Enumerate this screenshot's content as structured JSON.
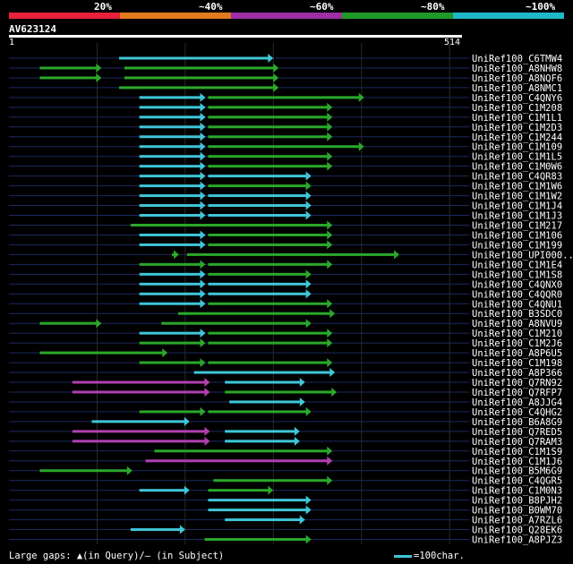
{
  "legend": [
    {
      "label": "20%",
      "color": "#e8203a"
    },
    {
      "label": "~40%",
      "color": "#e27a1e"
    },
    {
      "label": "~60%",
      "color": "#9b2fa3"
    },
    {
      "label": "~80%",
      "color": "#1f9a28"
    },
    {
      "label": "~100%",
      "color": "#1fb8c8"
    }
  ],
  "query": {
    "name": "AV623124",
    "start": "1",
    "end": "514",
    "length": 514
  },
  "colors": {
    "cyan": "#3fc6d8",
    "green": "#2aa82a",
    "magenta": "#b040b0",
    "guide": "#1c2a60"
  },
  "hits": [
    {
      "name": "UniRef100_C6TMW4",
      "segs": [
        [
          125,
          300,
          "c"
        ]
      ]
    },
    {
      "name": "UniRef100_A8NHW8",
      "segs": [
        [
          35,
          105,
          "g"
        ],
        [
          131,
          306,
          "g"
        ]
      ]
    },
    {
      "name": "UniRef100_A8NQF6",
      "segs": [
        [
          35,
          105,
          "g"
        ],
        [
          131,
          306,
          "g"
        ]
      ]
    },
    {
      "name": "UniRef100_A8NMC1",
      "segs": [
        [
          125,
          306,
          "g"
        ]
      ]
    },
    {
      "name": "UniRef100_C4QNY6",
      "segs": [
        [
          148,
          223,
          "c"
        ],
        [
          226,
          403,
          "g"
        ]
      ]
    },
    {
      "name": "UniRef100_C1M208",
      "segs": [
        [
          148,
          223,
          "c"
        ],
        [
          226,
          367,
          "g"
        ]
      ]
    },
    {
      "name": "UniRef100_C1M1L1",
      "segs": [
        [
          148,
          223,
          "c"
        ],
        [
          226,
          367,
          "g"
        ]
      ]
    },
    {
      "name": "UniRef100_C1M2D3",
      "segs": [
        [
          148,
          223,
          "c"
        ],
        [
          226,
          367,
          "g"
        ]
      ]
    },
    {
      "name": "UniRef100_C1M244",
      "segs": [
        [
          148,
          223,
          "c"
        ],
        [
          226,
          367,
          "g"
        ]
      ]
    },
    {
      "name": "UniRef100_C1M109",
      "segs": [
        [
          148,
          223,
          "c"
        ],
        [
          226,
          403,
          "g"
        ]
      ]
    },
    {
      "name": "UniRef100_C1M1L5",
      "segs": [
        [
          148,
          223,
          "c"
        ],
        [
          226,
          367,
          "g"
        ]
      ]
    },
    {
      "name": "UniRef100_C1M0W6",
      "segs": [
        [
          148,
          223,
          "c"
        ],
        [
          226,
          367,
          "g"
        ]
      ]
    },
    {
      "name": "UniRef100_C4QR83",
      "segs": [
        [
          148,
          223,
          "c"
        ],
        [
          226,
          343,
          "c"
        ]
      ]
    },
    {
      "name": "UniRef100_C1M1W6",
      "segs": [
        [
          148,
          223,
          "c"
        ],
        [
          226,
          343,
          "g"
        ]
      ]
    },
    {
      "name": "UniRef100_C1M1W2",
      "segs": [
        [
          148,
          223,
          "c"
        ],
        [
          226,
          343,
          "c"
        ]
      ]
    },
    {
      "name": "UniRef100_C1M1J4",
      "segs": [
        [
          148,
          223,
          "c"
        ],
        [
          226,
          343,
          "c"
        ]
      ]
    },
    {
      "name": "UniRef100_C1M1J3",
      "segs": [
        [
          148,
          223,
          "c"
        ],
        [
          226,
          343,
          "c"
        ]
      ]
    },
    {
      "name": "UniRef100_C1M217",
      "segs": [
        [
          138,
          367,
          "g"
        ]
      ]
    },
    {
      "name": "UniRef100_C1M106",
      "segs": [
        [
          148,
          223,
          "c"
        ],
        [
          226,
          367,
          "g"
        ]
      ]
    },
    {
      "name": "UniRef100_C1M199",
      "segs": [
        [
          148,
          223,
          "c"
        ],
        [
          226,
          367,
          "g"
        ]
      ]
    },
    {
      "name": "UniRef100_UPI000..",
      "segs": [
        [
          185,
          193,
          "g"
        ],
        [
          202,
          443,
          "g"
        ]
      ]
    },
    {
      "name": "UniRef100_C1M1E4",
      "segs": [
        [
          148,
          223,
          "g"
        ],
        [
          226,
          367,
          "g"
        ]
      ]
    },
    {
      "name": "UniRef100_C1M1S8",
      "segs": [
        [
          148,
          223,
          "c"
        ],
        [
          226,
          343,
          "g"
        ]
      ]
    },
    {
      "name": "UniRef100_C4QNX0",
      "segs": [
        [
          148,
          223,
          "c"
        ],
        [
          226,
          343,
          "c"
        ]
      ]
    },
    {
      "name": "UniRef100_C4QQR0",
      "segs": [
        [
          148,
          223,
          "c"
        ],
        [
          226,
          343,
          "c"
        ]
      ]
    },
    {
      "name": "UniRef100_C4QNU1",
      "segs": [
        [
          148,
          223,
          "c"
        ],
        [
          226,
          367,
          "g"
        ]
      ]
    },
    {
      "name": "UniRef100_B3SDC0",
      "segs": [
        [
          192,
          370,
          "g"
        ]
      ]
    },
    {
      "name": "UniRef100_A8NVU9",
      "segs": [
        [
          35,
          105,
          "g"
        ],
        [
          173,
          343,
          "g"
        ]
      ]
    },
    {
      "name": "UniRef100_C1M210",
      "segs": [
        [
          148,
          223,
          "c"
        ],
        [
          226,
          367,
          "g"
        ]
      ]
    },
    {
      "name": "UniRef100_C1M2J6",
      "segs": [
        [
          148,
          223,
          "g"
        ],
        [
          226,
          367,
          "g"
        ]
      ]
    },
    {
      "name": "UniRef100_A8P6U5",
      "segs": [
        [
          35,
          180,
          "g"
        ]
      ]
    },
    {
      "name": "UniRef100_C1M198",
      "segs": [
        [
          148,
          223,
          "g"
        ],
        [
          226,
          367,
          "g"
        ]
      ]
    },
    {
      "name": "UniRef100_A8P366",
      "segs": [
        [
          210,
          370,
          "c"
        ]
      ]
    },
    {
      "name": "UniRef100_Q7RN92",
      "segs": [
        [
          72,
          228,
          "m"
        ],
        [
          245,
          336,
          "c"
        ]
      ]
    },
    {
      "name": "UniRef100_Q7RFP7",
      "segs": [
        [
          72,
          228,
          "m"
        ],
        [
          245,
          372,
          "g"
        ]
      ]
    },
    {
      "name": "UniRef100_A8JJG4",
      "segs": [
        [
          250,
          336,
          "c"
        ]
      ]
    },
    {
      "name": "UniRef100_C4QHG2",
      "segs": [
        [
          148,
          223,
          "g"
        ],
        [
          226,
          343,
          "g"
        ]
      ]
    },
    {
      "name": "UniRef100_B6A8G9",
      "segs": [
        [
          94,
          205,
          "c"
        ]
      ]
    },
    {
      "name": "UniRef100_Q7RED5",
      "segs": [
        [
          72,
          228,
          "m"
        ],
        [
          245,
          330,
          "c"
        ]
      ]
    },
    {
      "name": "UniRef100_Q7RAM3",
      "segs": [
        [
          72,
          228,
          "m"
        ],
        [
          245,
          330,
          "c"
        ]
      ]
    },
    {
      "name": "UniRef100_C1M1S9",
      "segs": [
        [
          165,
          367,
          "g"
        ]
      ]
    },
    {
      "name": "UniRef100_C1M1J6",
      "segs": [
        [
          155,
          367,
          "m"
        ]
      ]
    },
    {
      "name": "UniRef100_B5M6G9",
      "segs": [
        [
          35,
          140,
          "g"
        ]
      ]
    },
    {
      "name": "UniRef100_C4QGR5",
      "segs": [
        [
          232,
          367,
          "g"
        ]
      ]
    },
    {
      "name": "UniRef100_C1M0N3",
      "segs": [
        [
          148,
          205,
          "c"
        ],
        [
          226,
          300,
          "g"
        ]
      ]
    },
    {
      "name": "UniRef100_B8PJH2",
      "segs": [
        [
          226,
          343,
          "c"
        ]
      ]
    },
    {
      "name": "UniRef100_B0WM70",
      "segs": [
        [
          226,
          343,
          "c"
        ]
      ]
    },
    {
      "name": "UniRef100_A7RZL6",
      "segs": [
        [
          245,
          336,
          "c"
        ]
      ]
    },
    {
      "name": "UniRef100_Q28EK6",
      "segs": [
        [
          138,
          200,
          "c"
        ]
      ]
    },
    {
      "name": "UniRef100_A8PJZ3",
      "segs": [
        [
          222,
          343,
          "g"
        ]
      ]
    }
  ],
  "footer": {
    "left": "Large gaps: ▲(in Query)/– (in Subject)",
    "right": "=100char."
  }
}
